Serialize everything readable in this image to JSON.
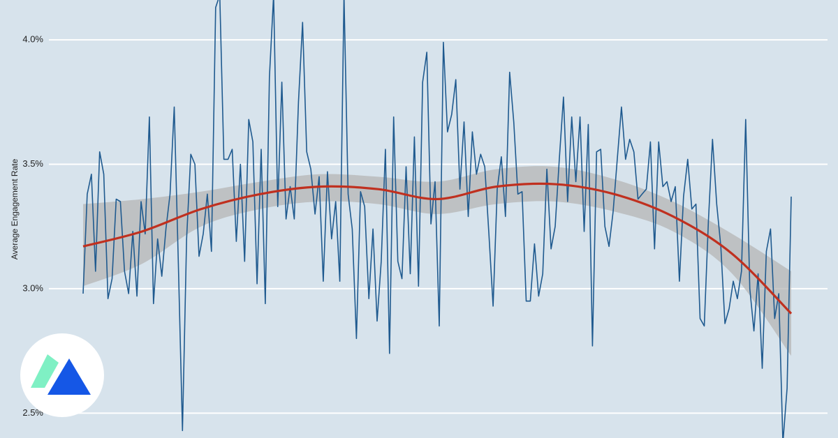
{
  "chart_data": {
    "type": "line",
    "y_label": "Average Engagement Rate",
    "ylim": [
      2.4,
      4.16
    ],
    "yticks": [
      {
        "value": 2.5,
        "label": "2.5%"
      },
      {
        "value": 3.0,
        "label": "3.0%"
      },
      {
        "value": 3.5,
        "label": "3.5%"
      },
      {
        "value": 4.0,
        "label": "4.0%"
      }
    ],
    "grid": true,
    "series": [
      {
        "color": "#1f5a8f",
        "values": [
          2.98,
          3.38,
          3.46,
          3.07,
          3.55,
          3.46,
          2.96,
          3.04,
          3.36,
          3.35,
          3.07,
          2.98,
          3.23,
          2.97,
          3.35,
          3.22,
          3.69,
          2.94,
          3.2,
          3.05,
          3.24,
          3.38,
          3.73,
          3.1,
          2.43,
          3.2,
          3.54,
          3.5,
          3.13,
          3.22,
          3.38,
          3.15,
          4.13,
          4.18,
          3.52,
          3.52,
          3.56,
          3.19,
          3.5,
          3.11,
          3.68,
          3.59,
          3.02,
          3.56,
          2.94,
          3.85,
          4.18,
          3.33,
          3.83,
          3.28,
          3.41,
          3.28,
          3.75,
          4.07,
          3.55,
          3.48,
          3.3,
          3.45,
          3.03,
          3.47,
          3.2,
          3.35,
          3.03,
          4.18,
          3.38,
          3.24,
          2.8,
          3.39,
          3.33,
          2.96,
          3.24,
          2.87,
          3.11,
          3.56,
          2.74,
          3.69,
          3.11,
          3.04,
          3.49,
          3.06,
          3.61,
          3.01,
          3.83,
          3.95,
          3.26,
          3.43,
          2.85,
          3.99,
          3.63,
          3.7,
          3.84,
          3.4,
          3.67,
          3.29,
          3.63,
          3.46,
          3.54,
          3.49,
          3.22,
          2.93,
          3.4,
          3.53,
          3.29,
          3.87,
          3.67,
          3.38,
          3.39,
          2.95,
          2.95,
          3.18,
          2.97,
          3.06,
          3.48,
          3.16,
          3.25,
          3.52,
          3.77,
          3.35,
          3.69,
          3.43,
          3.69,
          3.23,
          3.66,
          2.77,
          3.55,
          3.56,
          3.25,
          3.17,
          3.31,
          3.52,
          3.73,
          3.52,
          3.6,
          3.55,
          3.36,
          3.38,
          3.4,
          3.59,
          3.16,
          3.59,
          3.41,
          3.43,
          3.35,
          3.41,
          3.03,
          3.37,
          3.52,
          3.32,
          3.34,
          2.88,
          2.85,
          3.27,
          3.6,
          3.34,
          3.17,
          2.86,
          2.92,
          3.03,
          2.96,
          3.07,
          3.68,
          3.0,
          2.83,
          3.06,
          2.68,
          3.15,
          3.24,
          2.88,
          2.98,
          2.38,
          2.6,
          3.37
        ]
      }
    ],
    "trend": {
      "color": "#c0301f",
      "values": [
        3.17,
        3.23,
        3.32,
        3.38,
        3.41,
        3.4,
        3.36,
        3.41,
        3.42,
        3.38,
        3.29,
        3.14,
        2.9
      ],
      "lower": [
        3.01,
        3.1,
        3.25,
        3.32,
        3.35,
        3.34,
        3.3,
        3.34,
        3.35,
        3.31,
        3.23,
        3.06,
        2.73
      ],
      "upper": [
        3.34,
        3.36,
        3.39,
        3.43,
        3.46,
        3.45,
        3.43,
        3.48,
        3.49,
        3.44,
        3.35,
        3.22,
        3.07
      ],
      "band_color": "#b5b5b5"
    }
  }
}
